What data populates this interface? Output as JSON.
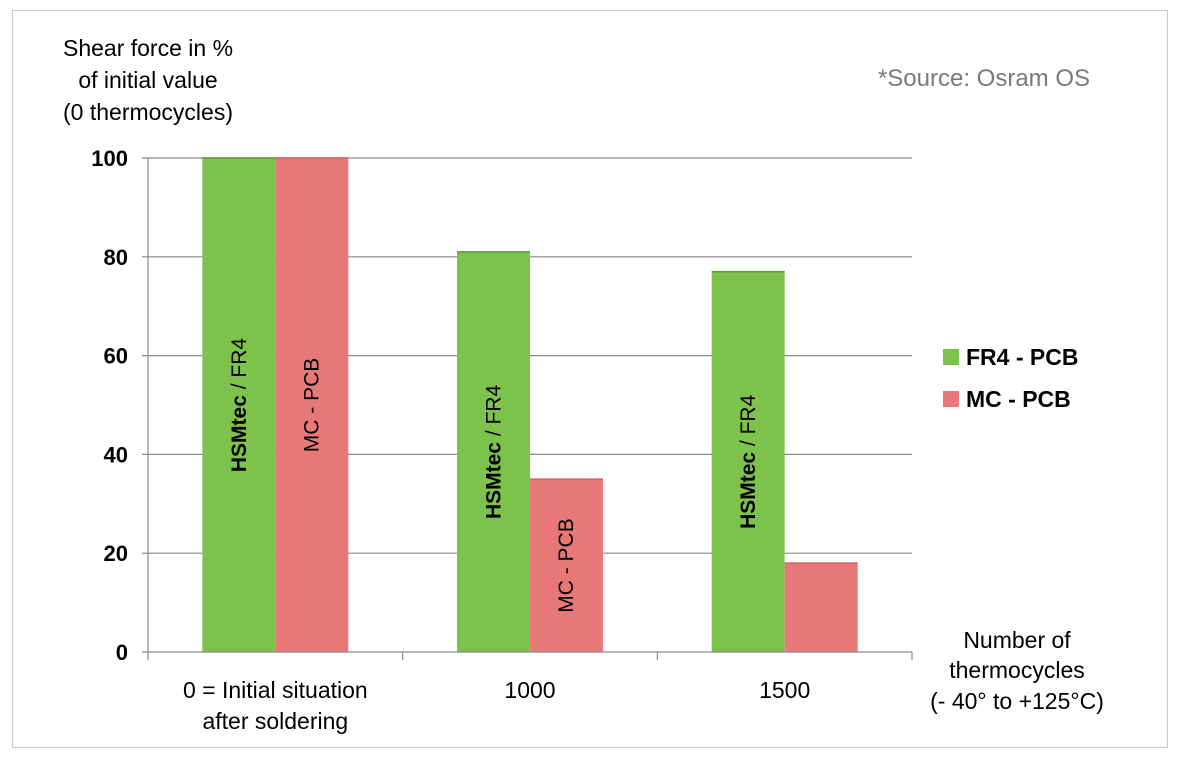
{
  "chart_data": {
    "type": "bar",
    "ylabel_lines": [
      "Shear force in %",
      "of initial value",
      "(0 thermocycles)"
    ],
    "xlabel_lines": [
      "Number of",
      "thermocycles",
      "(- 40° to +125°C)"
    ],
    "source_note": "*Source: Osram OS",
    "categories": [
      {
        "lines": [
          "0 = Initial situation",
          "after soldering"
        ]
      },
      {
        "lines": [
          "1000"
        ]
      },
      {
        "lines": [
          "1500"
        ]
      }
    ],
    "ylim": [
      0,
      100
    ],
    "yticks": [
      0,
      20,
      40,
      60,
      80,
      100
    ],
    "grid": true,
    "legend_position": "right",
    "series": [
      {
        "name": "FR4 - PCB",
        "color": "#7dc24b",
        "values": [
          100,
          81,
          77
        ],
        "bar_labels": [
          {
            "bold": "HSMtec",
            "rest": " / FR4"
          },
          {
            "bold": "HSMtec",
            "rest": " / FR4"
          },
          {
            "bold": "HSMtec",
            "rest": " / FR4"
          }
        ]
      },
      {
        "name": "MC - PCB",
        "color": "#e87878",
        "values": [
          100,
          35,
          18
        ],
        "bar_labels": [
          "MC - PCB",
          "MC - PCB",
          null
        ]
      }
    ]
  }
}
